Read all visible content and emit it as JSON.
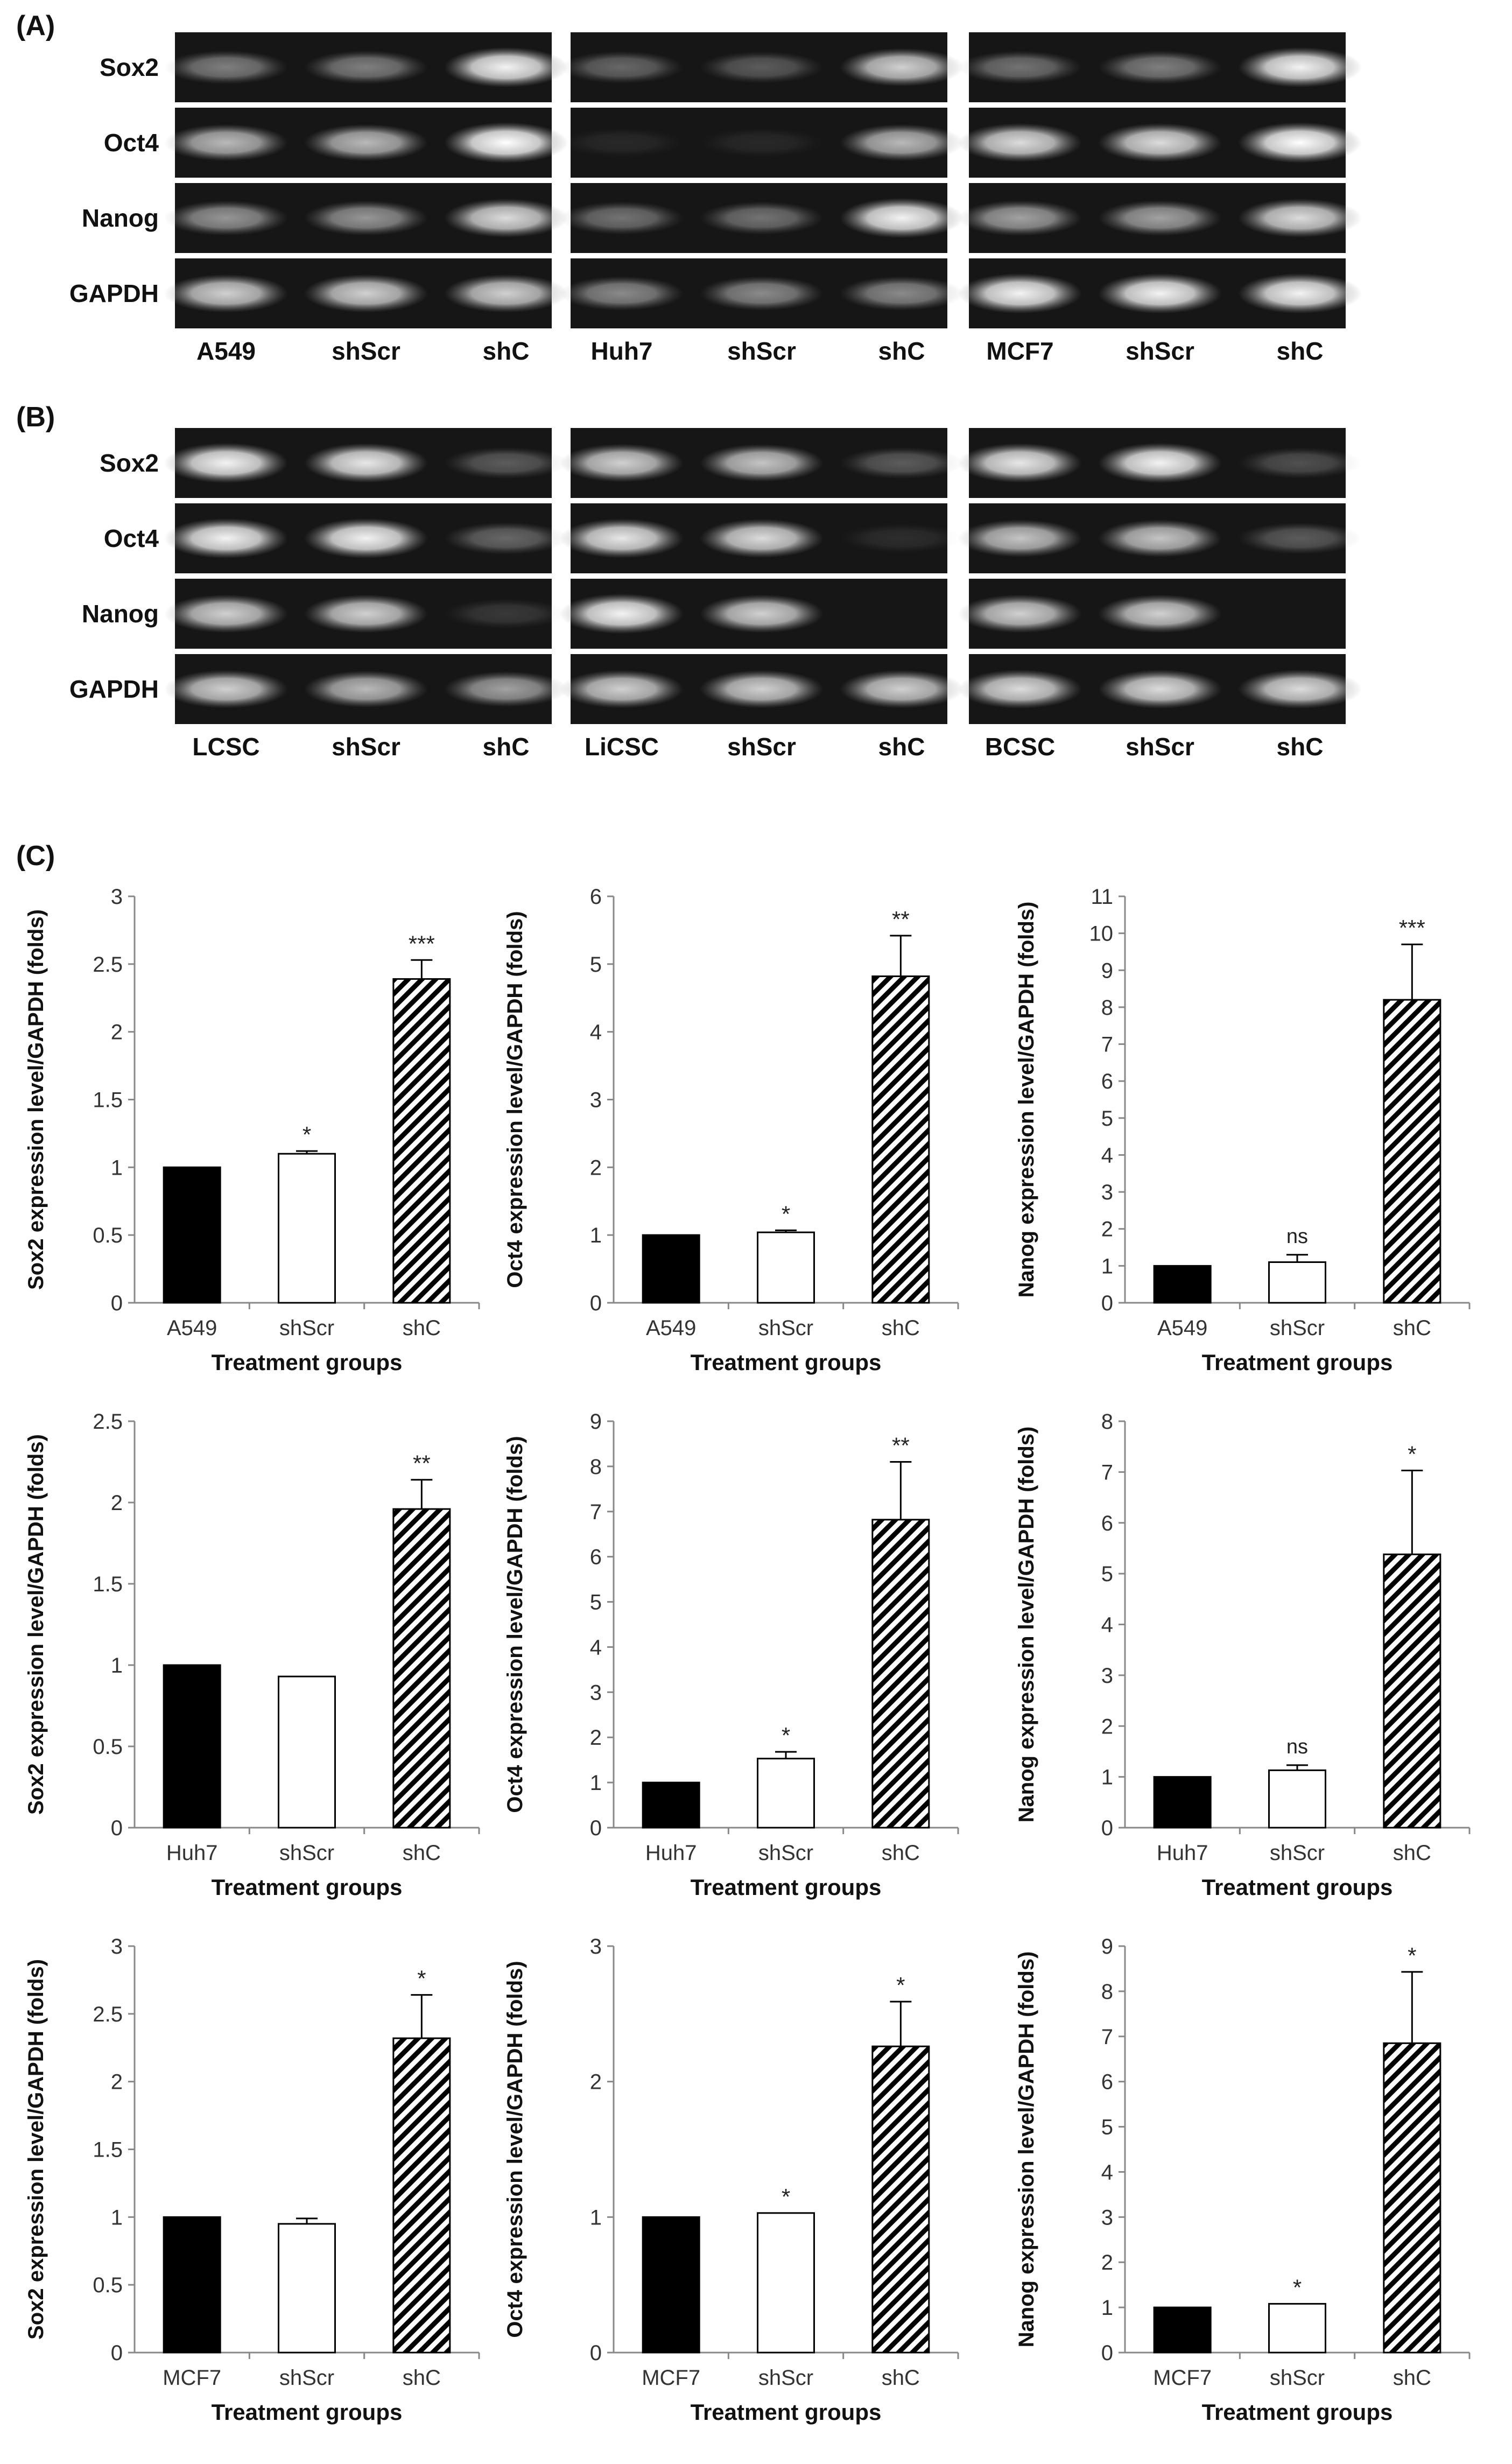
{
  "panel_labels": {
    "A": "(A)",
    "B": "(B)",
    "C": "(C)"
  },
  "gel_row_labels": [
    "Sox2",
    "Oct4",
    "Nanog",
    "GAPDH"
  ],
  "gel_panels": [
    {
      "section": "A",
      "lanes": [
        "A549",
        "shScr",
        "shC"
      ],
      "band_intensity": [
        [
          0.45,
          0.45,
          0.95
        ],
        [
          0.7,
          0.7,
          1.0
        ],
        [
          0.55,
          0.55,
          0.85
        ],
        [
          0.8,
          0.8,
          0.8
        ]
      ]
    },
    {
      "section": "A",
      "lanes": [
        "Huh7",
        "shScr",
        "shC"
      ],
      "band_intensity": [
        [
          0.35,
          0.3,
          0.8
        ],
        [
          0.08,
          0.08,
          0.7
        ],
        [
          0.4,
          0.4,
          0.95
        ],
        [
          0.5,
          0.5,
          0.5
        ]
      ]
    },
    {
      "section": "A",
      "lanes": [
        "MCF7",
        "shScr",
        "shC"
      ],
      "band_intensity": [
        [
          0.4,
          0.45,
          0.95
        ],
        [
          0.85,
          0.85,
          1.0
        ],
        [
          0.6,
          0.6,
          0.85
        ],
        [
          0.95,
          0.95,
          0.95
        ]
      ]
    },
    {
      "section": "B",
      "lanes": [
        "LCSC",
        "shScr",
        "shC"
      ],
      "band_intensity": [
        [
          0.95,
          0.9,
          0.3
        ],
        [
          0.95,
          0.95,
          0.35
        ],
        [
          0.8,
          0.8,
          0.15
        ],
        [
          0.8,
          0.7,
          0.6
        ]
      ]
    },
    {
      "section": "B",
      "lanes": [
        "LiCSC",
        "shScr",
        "shC"
      ],
      "band_intensity": [
        [
          0.8,
          0.75,
          0.3
        ],
        [
          0.9,
          0.85,
          0.1
        ],
        [
          0.95,
          0.8,
          0.0
        ],
        [
          0.8,
          0.8,
          0.8
        ]
      ]
    },
    {
      "section": "B",
      "lanes": [
        "BCSC",
        "shScr",
        "shC"
      ],
      "band_intensity": [
        [
          0.9,
          0.95,
          0.25
        ],
        [
          0.75,
          0.75,
          0.3
        ],
        [
          0.8,
          0.8,
          0.0
        ],
        [
          0.85,
          0.85,
          0.85
        ]
      ]
    }
  ],
  "chart_data": [
    {
      "type": "bar",
      "categories": [
        "A549",
        "shScr",
        "shC"
      ],
      "values": [
        1,
        1.1,
        2.39
      ],
      "errors": [
        0,
        0.02,
        0.14
      ],
      "significance": [
        "",
        "*",
        "***"
      ],
      "ylabel": "Sox2 expression level/GAPDH  (folds)",
      "xlabel": "Treatment groups",
      "ylim": [
        0,
        3
      ],
      "yticks": [
        "0",
        "0.5",
        "1",
        "1.5",
        "2",
        "2.5",
        "3"
      ]
    },
    {
      "type": "bar",
      "categories": [
        "A549",
        "shScr",
        "shC"
      ],
      "values": [
        1,
        1.04,
        4.82
      ],
      "errors": [
        0,
        0.03,
        0.6
      ],
      "significance": [
        "",
        "*",
        "**"
      ],
      "ylabel": "Oct4 expression level/GAPDH  (folds)",
      "xlabel": "Treatment groups",
      "ylim": [
        0,
        6
      ],
      "yticks": [
        "0",
        "1",
        "2",
        "3",
        "4",
        "5",
        "6"
      ]
    },
    {
      "type": "bar",
      "categories": [
        "A549",
        "shScr",
        "shC"
      ],
      "values": [
        1,
        1.1,
        8.2
      ],
      "errors": [
        0,
        0.2,
        1.5
      ],
      "significance": [
        "",
        "ns",
        "***"
      ],
      "ylabel": "Nanog expression level/GAPDH  (folds)",
      "xlabel": "Treatment groups",
      "ylim": [
        0,
        11
      ],
      "yticks": [
        "0",
        "1",
        "2",
        "3",
        "4",
        "5",
        "6",
        "7",
        "8",
        "9",
        "10",
        "11"
      ]
    },
    {
      "type": "bar",
      "categories": [
        "Huh7",
        "shScr",
        "shC"
      ],
      "values": [
        1,
        0.93,
        1.96
      ],
      "errors": [
        0,
        0,
        0.18
      ],
      "significance": [
        "",
        "",
        "**"
      ],
      "ylabel": "Sox2 expression level/GAPDH  (folds)",
      "xlabel": "Treatment groups",
      "ylim": [
        0,
        2.5
      ],
      "yticks": [
        "0",
        "0.5",
        "1",
        "1.5",
        "2",
        "2.5"
      ]
    },
    {
      "type": "bar",
      "categories": [
        "Huh7",
        "shScr",
        "shC"
      ],
      "values": [
        1,
        1.53,
        6.82
      ],
      "errors": [
        0,
        0.15,
        1.28
      ],
      "significance": [
        "",
        "*",
        "**"
      ],
      "ylabel": "Oct4 expression level/GAPDH  (folds)",
      "xlabel": "Treatment groups",
      "ylim": [
        0,
        9
      ],
      "yticks": [
        "0",
        "1",
        "2",
        "3",
        "4",
        "5",
        "6",
        "7",
        "8",
        "9"
      ]
    },
    {
      "type": "bar",
      "categories": [
        "Huh7",
        "shScr",
        "shC"
      ],
      "values": [
        1,
        1.13,
        5.38
      ],
      "errors": [
        0,
        0.1,
        1.65
      ],
      "significance": [
        "",
        "ns",
        "*"
      ],
      "ylabel": "Nanog expression level/GAPDH  (folds)",
      "xlabel": "Treatment groups",
      "ylim": [
        0,
        8
      ],
      "yticks": [
        "0",
        "1",
        "2",
        "3",
        "4",
        "5",
        "6",
        "7",
        "8"
      ]
    },
    {
      "type": "bar",
      "categories": [
        "MCF7",
        "shScr",
        "shC"
      ],
      "values": [
        1,
        0.95,
        2.32
      ],
      "errors": [
        0,
        0.04,
        0.32
      ],
      "significance": [
        "",
        "",
        "*"
      ],
      "ylabel": "Sox2 expression level/GAPDH  (folds)",
      "xlabel": "Treatment groups",
      "ylim": [
        0,
        3
      ],
      "yticks": [
        "0",
        "0.5",
        "1",
        "1.5",
        "2",
        "2.5",
        "3"
      ]
    },
    {
      "type": "bar",
      "categories": [
        "MCF7",
        "shScr",
        "shC"
      ],
      "values": [
        1,
        1.03,
        2.26
      ],
      "errors": [
        0,
        0,
        0.33
      ],
      "significance": [
        "",
        "*",
        "*"
      ],
      "ylabel": "Oct4 expression level/GAPDH  (folds)",
      "xlabel": "Treatment groups",
      "ylim": [
        0,
        3
      ],
      "yticks": [
        "0",
        "1",
        "2",
        "3"
      ]
    },
    {
      "type": "bar",
      "categories": [
        "MCF7",
        "shScr",
        "shC"
      ],
      "values": [
        1,
        1.08,
        6.85
      ],
      "errors": [
        0,
        0,
        1.58
      ],
      "significance": [
        "",
        "*",
        "*"
      ],
      "ylabel": "Nanog expression level/GAPDH  (folds)",
      "xlabel": "Treatment groups",
      "ylim": [
        0,
        9
      ],
      "yticks": [
        "0",
        "1",
        "2",
        "3",
        "4",
        "5",
        "6",
        "7",
        "8",
        "9"
      ]
    }
  ]
}
